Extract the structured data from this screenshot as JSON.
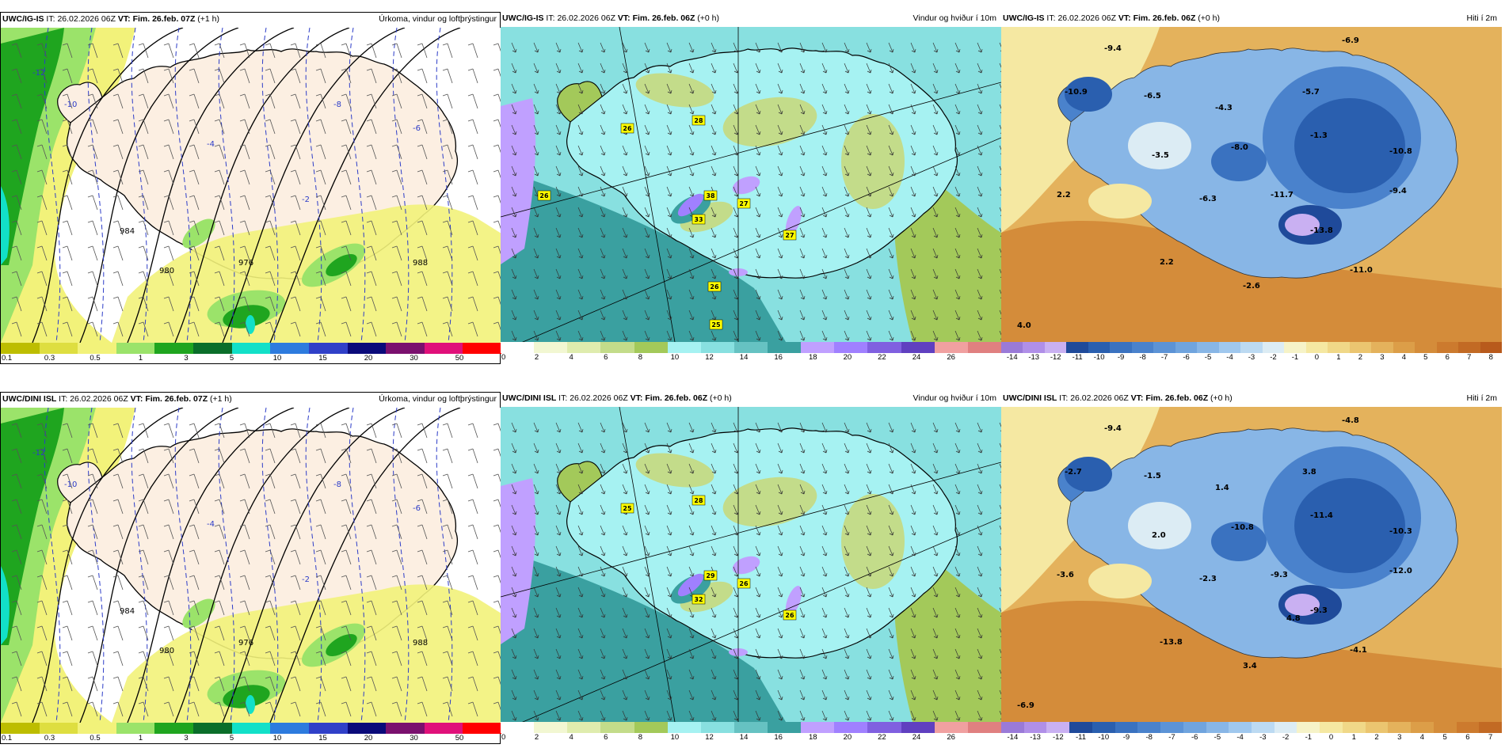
{
  "panels": [
    {
      "id": "igis-precip",
      "model": "UWC/IG-IS",
      "it_label": "IT:",
      "it_value": "26.02.2026 06Z",
      "vt_label": "VT:",
      "vt_value": "Fim. 26.feb. 07Z",
      "lead": "(+1 h)",
      "product": "Úrkoma, vindur og loftþrýstingur",
      "type": "precip",
      "colorbar": {
        "labels": [
          "0.1",
          "0.3",
          "0.5",
          "1",
          "3",
          "5",
          "10",
          "15",
          "20",
          "30",
          "50"
        ],
        "colors": [
          "#bdbd00",
          "#dede40",
          "#f2f27a",
          "#9be36a",
          "#1fa51f",
          "#0a6e2a",
          "#12e0c8",
          "#2d7bde",
          "#3040c8",
          "#0a0a7a",
          "#7a106e",
          "#e0107a",
          "#ff0000"
        ]
      },
      "map_labels": [
        {
          "text": "-12",
          "color": "blue"
        },
        {
          "text": "-10",
          "color": "blue"
        },
        {
          "text": "-8",
          "color": "blue"
        },
        {
          "text": "-6",
          "color": "blue"
        },
        {
          "text": "-4",
          "color": "blue"
        },
        {
          "text": "-2",
          "color": "blue"
        },
        {
          "text": "988",
          "color": "black"
        },
        {
          "text": "984",
          "color": "black"
        },
        {
          "text": "980",
          "color": "black"
        },
        {
          "text": "976",
          "color": "black"
        }
      ]
    },
    {
      "id": "igis-wind",
      "model": "UWC/IG-IS",
      "it_label": "IT:",
      "it_value": "26.02.2026 06Z",
      "vt_label": "VT:",
      "vt_value": "Fim. 26.feb. 06Z",
      "lead": "(+0 h)",
      "product": "Vindur og hviður í 10m",
      "type": "wind",
      "colorbar": {
        "labels": [
          "0",
          "2",
          "4",
          "6",
          "8",
          "10",
          "12",
          "14",
          "16",
          "18",
          "20",
          "22",
          "24",
          "26"
        ],
        "colors": [
          "#ffffff",
          "#f2f7d2",
          "#dfecae",
          "#c3dc8a",
          "#a3c95a",
          "#a6f2f2",
          "#88e0e0",
          "#66c2c2",
          "#3aa0a0",
          "#c0a0ff",
          "#a080ff",
          "#8060e0",
          "#6040c0",
          "#f0a0a0",
          "#e08080"
        ]
      },
      "map_labels": [
        {
          "text": "28"
        },
        {
          "text": "26"
        },
        {
          "text": "38"
        },
        {
          "text": "33"
        },
        {
          "text": "27"
        },
        {
          "text": "27"
        },
        {
          "text": "26"
        },
        {
          "text": "25"
        },
        {
          "text": "26"
        }
      ]
    },
    {
      "id": "igis-temp",
      "model": "UWC/IG-IS",
      "it_label": "IT:",
      "it_value": "26.02.2026 06Z",
      "vt_label": "VT:",
      "vt_value": "Fim. 26.feb. 06Z",
      "lead": "(+0 h)",
      "product": "Hiti í 2m",
      "type": "temp",
      "colorbar": {
        "labels": [
          "-14",
          "-13",
          "-12",
          "-11",
          "-10",
          "-9",
          "-8",
          "-7",
          "-6",
          "-5",
          "-4",
          "-3",
          "-2",
          "-1",
          "0",
          "1",
          "2",
          "3",
          "4",
          "5",
          "6",
          "7",
          "8"
        ],
        "colors": [
          "#9a7ad8",
          "#b08fe8",
          "#c9b0f2",
          "#1f4a9a",
          "#2a5faf",
          "#3a72c0",
          "#4a82cc",
          "#5c93d6",
          "#70a4de",
          "#88b6e6",
          "#a0c8ee",
          "#bcdaf2",
          "#dcecf4",
          "#f6f3c8",
          "#f5e8a2",
          "#f0d888",
          "#ebc570",
          "#e4b25c",
          "#dc9e48",
          "#d48c3a",
          "#cc7a2e",
          "#c26a24",
          "#b85a1c"
        ]
      },
      "map_labels": [
        {
          "text": "-9.4"
        },
        {
          "text": "-6.9"
        },
        {
          "text": "-10.9"
        },
        {
          "text": "-6.5"
        },
        {
          "text": "-4.3"
        },
        {
          "text": "-5.7"
        },
        {
          "text": "-3.5"
        },
        {
          "text": "-8.0"
        },
        {
          "text": "-1.3"
        },
        {
          "text": "-10.8"
        },
        {
          "text": "2.2"
        },
        {
          "text": "-6.3"
        },
        {
          "text": "-11.7"
        },
        {
          "text": "-9.4"
        },
        {
          "text": "-13.8"
        },
        {
          "text": "2.2"
        },
        {
          "text": "-11.0"
        },
        {
          "text": "-2.6"
        },
        {
          "text": "4.0"
        }
      ]
    },
    {
      "id": "dini-precip",
      "model": "UWC/DINI ISL",
      "it_label": "IT:",
      "it_value": "26.02.2026 06Z",
      "vt_label": "VT:",
      "vt_value": "Fim. 26.feb. 07Z",
      "lead": "(+1 h)",
      "product": "Úrkoma, vindur og loftþrýstingur",
      "type": "precip",
      "colorbar": {
        "labels": [
          "0.1",
          "0.3",
          "0.5",
          "1",
          "3",
          "5",
          "10",
          "15",
          "20",
          "30",
          "50"
        ],
        "colors": [
          "#bdbd00",
          "#dede40",
          "#f2f27a",
          "#9be36a",
          "#1fa51f",
          "#0a6e2a",
          "#12e0c8",
          "#2d7bde",
          "#3040c8",
          "#0a0a7a",
          "#7a106e",
          "#e0107a",
          "#ff0000"
        ]
      },
      "map_labels": [
        {
          "text": "-12",
          "color": "blue"
        },
        {
          "text": "-10",
          "color": "blue"
        },
        {
          "text": "-8",
          "color": "blue"
        },
        {
          "text": "-6",
          "color": "blue"
        },
        {
          "text": "-4",
          "color": "blue"
        },
        {
          "text": "-2",
          "color": "blue"
        },
        {
          "text": "988",
          "color": "black"
        },
        {
          "text": "984",
          "color": "black"
        },
        {
          "text": "980",
          "color": "black"
        },
        {
          "text": "976",
          "color": "black"
        }
      ]
    },
    {
      "id": "dini-wind",
      "model": "UWC/DINI ISL",
      "it_label": "IT:",
      "it_value": "26.02.2026 06Z",
      "vt_label": "VT:",
      "vt_value": "Fim. 26.feb. 06Z",
      "lead": "(+0 h)",
      "product": "Vindur og hviður í 10m",
      "type": "wind",
      "colorbar": {
        "labels": [
          "0",
          "2",
          "4",
          "6",
          "8",
          "10",
          "12",
          "14",
          "16",
          "18",
          "20",
          "22",
          "24",
          "26"
        ],
        "colors": [
          "#ffffff",
          "#f2f7d2",
          "#dfecae",
          "#c3dc8a",
          "#a3c95a",
          "#a6f2f2",
          "#88e0e0",
          "#66c2c2",
          "#3aa0a0",
          "#c0a0ff",
          "#a080ff",
          "#8060e0",
          "#6040c0",
          "#f0a0a0",
          "#e08080"
        ]
      },
      "map_labels": [
        {
          "text": "28"
        },
        {
          "text": "25"
        },
        {
          "text": "29"
        },
        {
          "text": "32"
        },
        {
          "text": "26"
        },
        {
          "text": "26"
        }
      ]
    },
    {
      "id": "dini-temp",
      "model": "UWC/DINI ISL",
      "it_label": "IT:",
      "it_value": "26.02.2026 06Z",
      "vt_label": "VT:",
      "vt_value": "Fim. 26.feb. 06Z",
      "lead": "(+0 h)",
      "product": "Hiti í 2m",
      "type": "temp",
      "colorbar": {
        "labels": [
          "-14",
          "-13",
          "-12",
          "-11",
          "-10",
          "-9",
          "-8",
          "-7",
          "-6",
          "-5",
          "-4",
          "-3",
          "-2",
          "-1",
          "0",
          "1",
          "2",
          "3",
          "4",
          "5",
          "6",
          "7"
        ],
        "colors": [
          "#9a7ad8",
          "#b08fe8",
          "#c9b0f2",
          "#1f4a9a",
          "#2a5faf",
          "#3a72c0",
          "#4a82cc",
          "#5c93d6",
          "#70a4de",
          "#88b6e6",
          "#a0c8ee",
          "#bcdaf2",
          "#dcecf4",
          "#f6f3c8",
          "#f5e8a2",
          "#f0d888",
          "#ebc570",
          "#e4b25c",
          "#dc9e48",
          "#d48c3a",
          "#cc7a2e",
          "#c26a24"
        ]
      },
      "map_labels": [
        {
          "text": "-9.4"
        },
        {
          "text": "-4.8"
        },
        {
          "text": "-2.7"
        },
        {
          "text": "-1.5"
        },
        {
          "text": "1.4"
        },
        {
          "text": "3.8"
        },
        {
          "text": "2.0"
        },
        {
          "text": "-10.8"
        },
        {
          "text": "-11.4"
        },
        {
          "text": "-10.3"
        },
        {
          "text": "-3.6"
        },
        {
          "text": "-2.3"
        },
        {
          "text": "-9.3"
        },
        {
          "text": "-12.0"
        },
        {
          "text": "-9.3"
        },
        {
          "text": "-13.8"
        },
        {
          "text": "-4.1"
        },
        {
          "text": "3.4"
        },
        {
          "text": "-6.9"
        },
        {
          "text": "4.8"
        }
      ]
    }
  ]
}
